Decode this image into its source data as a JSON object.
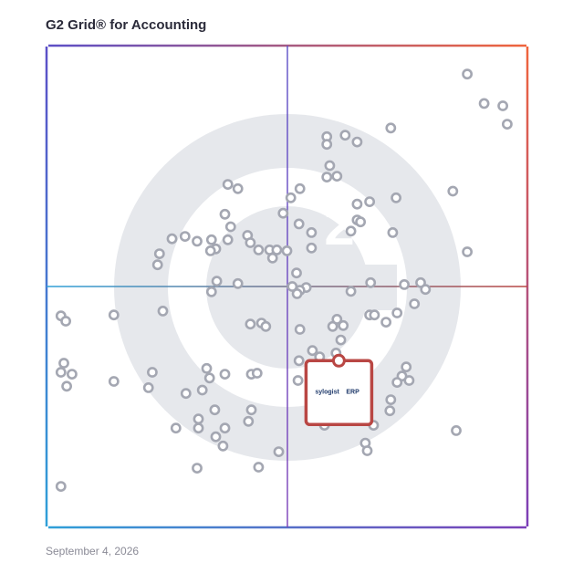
{
  "title": "G2 Grid® for Accounting",
  "date": "September 4, 2026",
  "watermark_text": "G2",
  "colors": {
    "frame_top_left": "#5c4fc7",
    "frame_top_right": "#f0643c",
    "frame_bottom_left": "#2fa0d8",
    "frame_bottom_right": "#7b3fb8",
    "dot": "#a4a7b2",
    "highlight": "#b94744",
    "watermark": "#e6e8ec"
  },
  "chart_data": {
    "type": "scatter",
    "title": "G2 Grid® for Accounting",
    "xlabel": "",
    "ylabel": "",
    "xlim": [
      0,
      100
    ],
    "ylim": [
      0,
      100
    ],
    "grid": "quadrants at x=50, y=50",
    "points": [
      {
        "x": 87.5,
        "y": 94.1
      },
      {
        "x": 91.0,
        "y": 88.0
      },
      {
        "x": 94.9,
        "y": 87.5
      },
      {
        "x": 95.8,
        "y": 83.7
      },
      {
        "x": 71.6,
        "y": 82.9
      },
      {
        "x": 58.3,
        "y": 81.1
      },
      {
        "x": 62.1,
        "y": 81.4
      },
      {
        "x": 64.6,
        "y": 80.0
      },
      {
        "x": 58.3,
        "y": 79.5
      },
      {
        "x": 58.9,
        "y": 75.1
      },
      {
        "x": 58.3,
        "y": 72.7
      },
      {
        "x": 60.4,
        "y": 72.9
      },
      {
        "x": 52.7,
        "y": 70.3
      },
      {
        "x": 50.8,
        "y": 68.4
      },
      {
        "x": 37.7,
        "y": 71.2
      },
      {
        "x": 39.8,
        "y": 70.3
      },
      {
        "x": 84.5,
        "y": 69.8
      },
      {
        "x": 67.2,
        "y": 67.6
      },
      {
        "x": 64.6,
        "y": 67.1
      },
      {
        "x": 72.7,
        "y": 68.4
      },
      {
        "x": 64.6,
        "y": 63.8
      },
      {
        "x": 49.2,
        "y": 65.2
      },
      {
        "x": 37.1,
        "y": 65.0
      },
      {
        "x": 38.3,
        "y": 62.4
      },
      {
        "x": 65.3,
        "y": 63.4
      },
      {
        "x": 41.8,
        "y": 60.6
      },
      {
        "x": 52.5,
        "y": 63.0
      },
      {
        "x": 63.3,
        "y": 61.5
      },
      {
        "x": 55.1,
        "y": 61.2
      },
      {
        "x": 72.0,
        "y": 61.2
      },
      {
        "x": 87.5,
        "y": 57.2
      },
      {
        "x": 28.8,
        "y": 60.4
      },
      {
        "x": 31.3,
        "y": 59.4
      },
      {
        "x": 34.3,
        "y": 59.7
      },
      {
        "x": 35.2,
        "y": 57.8
      },
      {
        "x": 37.7,
        "y": 59.7
      },
      {
        "x": 42.4,
        "y": 59.1
      },
      {
        "x": 44.1,
        "y": 57.6
      },
      {
        "x": 46.4,
        "y": 57.6
      },
      {
        "x": 47.9,
        "y": 57.6
      },
      {
        "x": 47.0,
        "y": 55.9
      },
      {
        "x": 55.1,
        "y": 58.0
      },
      {
        "x": 23.5,
        "y": 56.8
      },
      {
        "x": 23.1,
        "y": 54.5
      },
      {
        "x": 26.1,
        "y": 59.9
      },
      {
        "x": 34.1,
        "y": 57.4
      },
      {
        "x": 50.0,
        "y": 57.4
      },
      {
        "x": 52.0,
        "y": 52.8
      },
      {
        "x": 35.4,
        "y": 51.1
      },
      {
        "x": 39.8,
        "y": 50.6
      },
      {
        "x": 51.1,
        "y": 50.0
      },
      {
        "x": 54.0,
        "y": 49.8
      },
      {
        "x": 52.7,
        "y": 49.2
      },
      {
        "x": 34.3,
        "y": 48.9
      },
      {
        "x": 52.1,
        "y": 48.5
      },
      {
        "x": 63.3,
        "y": 49.0
      },
      {
        "x": 67.4,
        "y": 50.8
      },
      {
        "x": 74.4,
        "y": 50.4
      },
      {
        "x": 77.8,
        "y": 50.8
      },
      {
        "x": 78.8,
        "y": 49.4
      },
      {
        "x": 76.5,
        "y": 46.4
      },
      {
        "x": 72.9,
        "y": 44.5
      },
      {
        "x": 67.2,
        "y": 44.1
      },
      {
        "x": 68.2,
        "y": 44.1
      },
      {
        "x": 70.6,
        "y": 42.6
      },
      {
        "x": 60.4,
        "y": 43.2
      },
      {
        "x": 61.7,
        "y": 41.9
      },
      {
        "x": 59.5,
        "y": 41.7
      },
      {
        "x": 52.7,
        "y": 41.1
      },
      {
        "x": 42.4,
        "y": 42.2
      },
      {
        "x": 44.7,
        "y": 42.4
      },
      {
        "x": 45.6,
        "y": 41.7
      },
      {
        "x": 61.2,
        "y": 38.9
      },
      {
        "x": 55.3,
        "y": 36.7
      },
      {
        "x": 3.0,
        "y": 43.9
      },
      {
        "x": 4.0,
        "y": 42.8
      },
      {
        "x": 14.0,
        "y": 44.1
      },
      {
        "x": 24.2,
        "y": 44.9
      },
      {
        "x": 74.8,
        "y": 33.3
      },
      {
        "x": 73.9,
        "y": 31.4
      },
      {
        "x": 72.9,
        "y": 30.1
      },
      {
        "x": 75.4,
        "y": 30.5
      },
      {
        "x": 52.5,
        "y": 34.6
      },
      {
        "x": 56.8,
        "y": 35.4
      },
      {
        "x": 60.2,
        "y": 36.2
      },
      {
        "x": 3.6,
        "y": 34.1
      },
      {
        "x": 3.0,
        "y": 32.2
      },
      {
        "x": 5.3,
        "y": 31.8
      },
      {
        "x": 4.2,
        "y": 29.3
      },
      {
        "x": 22.0,
        "y": 32.2
      },
      {
        "x": 33.3,
        "y": 33.0
      },
      {
        "x": 33.9,
        "y": 31.0
      },
      {
        "x": 21.2,
        "y": 29.0
      },
      {
        "x": 29.0,
        "y": 27.8
      },
      {
        "x": 32.4,
        "y": 28.5
      },
      {
        "x": 37.1,
        "y": 31.8
      },
      {
        "x": 42.6,
        "y": 31.8
      },
      {
        "x": 43.8,
        "y": 32.0
      },
      {
        "x": 14.0,
        "y": 30.3
      },
      {
        "x": 52.3,
        "y": 30.5
      },
      {
        "x": 55.3,
        "y": 27.1
      },
      {
        "x": 71.6,
        "y": 26.5
      },
      {
        "x": 71.4,
        "y": 24.2
      },
      {
        "x": 68.0,
        "y": 21.2
      },
      {
        "x": 35.0,
        "y": 24.4
      },
      {
        "x": 42.6,
        "y": 24.4
      },
      {
        "x": 31.6,
        "y": 22.5
      },
      {
        "x": 42.0,
        "y": 22.0
      },
      {
        "x": 26.9,
        "y": 20.6
      },
      {
        "x": 31.6,
        "y": 20.6
      },
      {
        "x": 37.1,
        "y": 20.6
      },
      {
        "x": 35.2,
        "y": 18.8
      },
      {
        "x": 85.2,
        "y": 20.1
      },
      {
        "x": 57.8,
        "y": 21.2
      },
      {
        "x": 36.7,
        "y": 16.9
      },
      {
        "x": 66.3,
        "y": 17.5
      },
      {
        "x": 66.7,
        "y": 15.9
      },
      {
        "x": 48.3,
        "y": 15.7
      },
      {
        "x": 31.3,
        "y": 12.3
      },
      {
        "x": 44.1,
        "y": 12.5
      },
      {
        "x": 3.0,
        "y": 8.5
      }
    ],
    "highlight": {
      "name": "sylogist ERP",
      "x": 60.8,
      "y": 34.6
    }
  },
  "highlight_label": {
    "brand": "sylogist",
    "tag": "ERP"
  }
}
